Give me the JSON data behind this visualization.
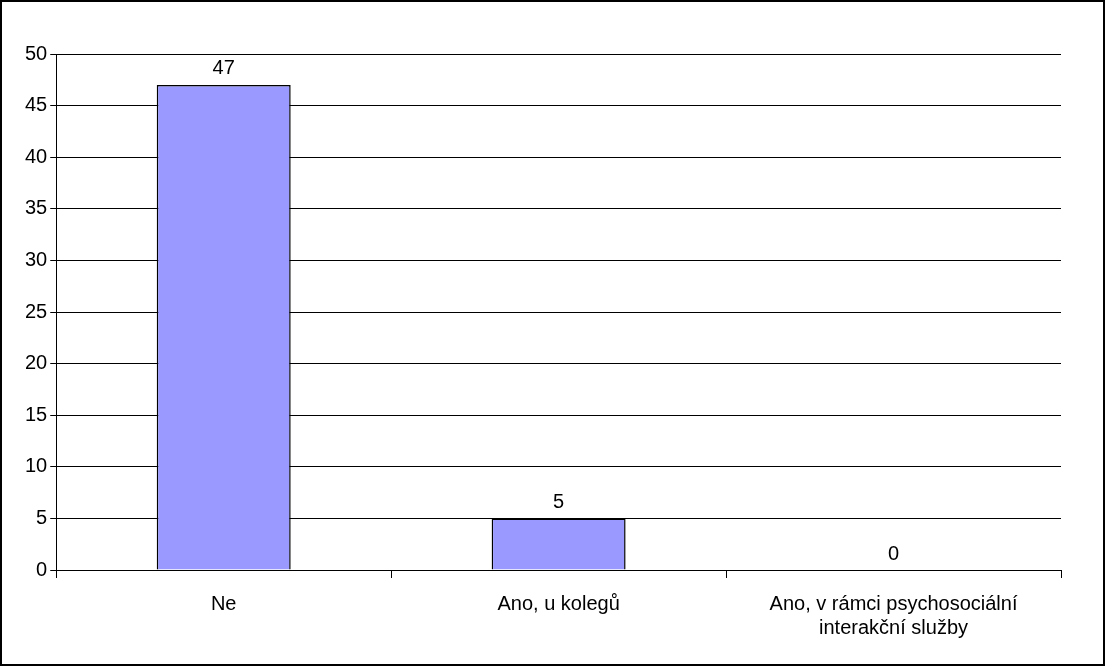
{
  "chart_data": {
    "type": "bar",
    "categories": [
      "Ne",
      "Ano, u kolegů",
      "Ano, v rámci psychosociální interakční služby"
    ],
    "values": [
      47,
      5,
      0
    ],
    "color": "#9999ff",
    "ylim": [
      0,
      50
    ],
    "yticks": [
      0,
      5,
      10,
      15,
      20,
      25,
      30,
      35,
      40,
      45,
      50
    ],
    "grid": "y",
    "data_labels": true,
    "legend": false
  }
}
